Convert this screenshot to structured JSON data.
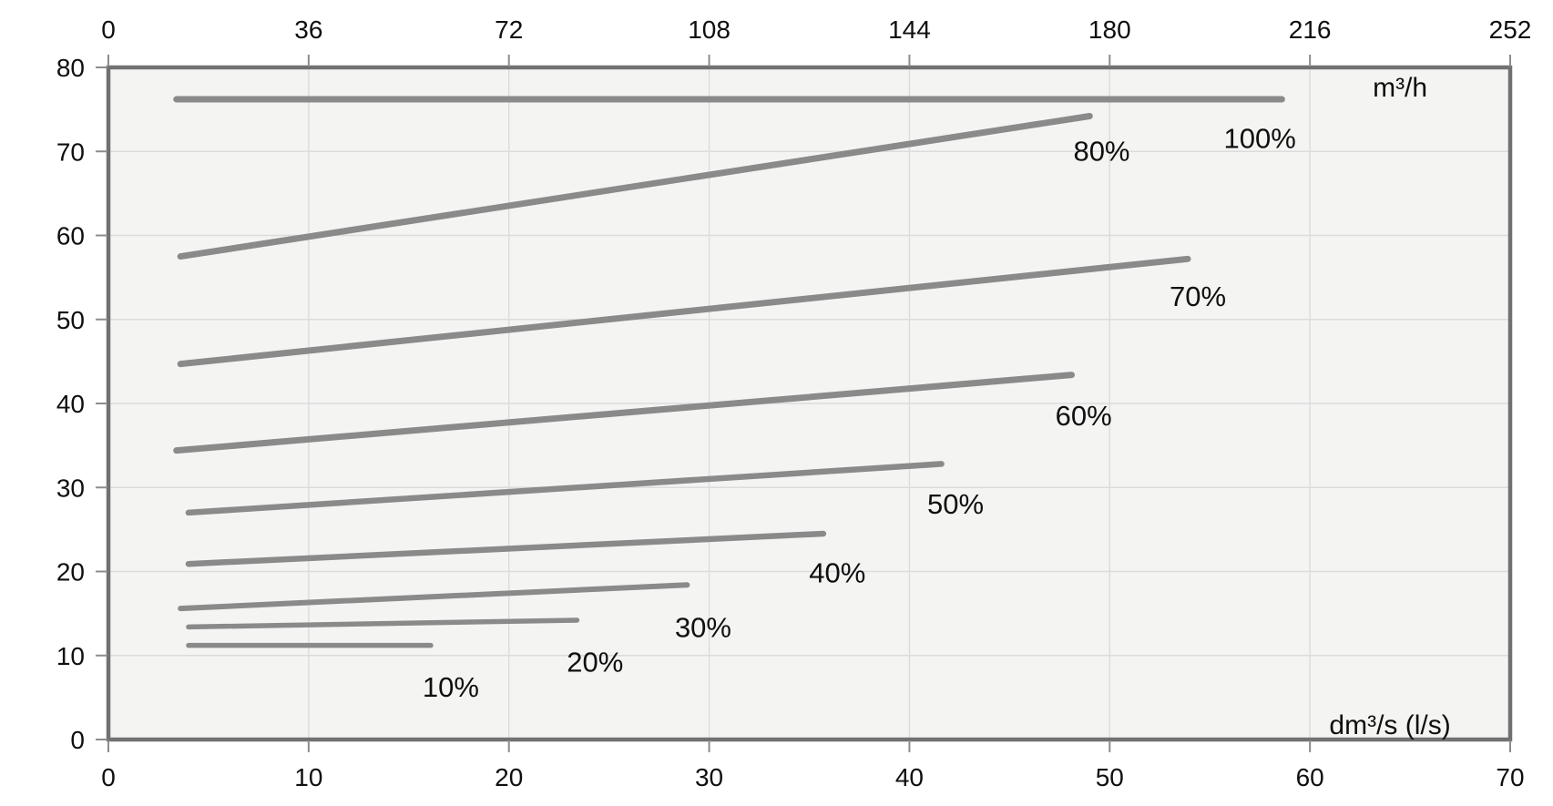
{
  "chart_data": {
    "type": "line",
    "title": "",
    "subtitle": "",
    "grid": true,
    "legend_position": "inline-labels",
    "axes": {
      "top": {
        "unit": "m³/h",
        "ticks": [
          0,
          36,
          72,
          108,
          144,
          180,
          216,
          252
        ],
        "range": [
          0,
          252
        ],
        "unit_at": [
          64.5,
          77.7
        ]
      },
      "bottom": {
        "unit": "dm³/s (l/s)",
        "ticks": [
          0,
          10,
          20,
          30,
          40,
          50,
          60,
          70
        ],
        "range": [
          0,
          70
        ],
        "unit_at": [
          64.0,
          1.8
        ]
      },
      "left": {
        "unit": "",
        "ticks": [
          0,
          10,
          20,
          30,
          40,
          50,
          60,
          70,
          80
        ],
        "range": [
          0,
          80
        ]
      }
    },
    "series": [
      {
        "name": "10%",
        "x": [
          4.0,
          16.1
        ],
        "y": [
          11.2,
          11.2
        ],
        "width": 5.5,
        "label_at": [
          17.1,
          6.3
        ]
      },
      {
        "name": "20%",
        "x": [
          4.0,
          23.4
        ],
        "y": [
          13.4,
          14.2
        ],
        "width": 5.5,
        "label_at": [
          24.3,
          9.3
        ]
      },
      {
        "name": "30%",
        "x": [
          3.6,
          28.9
        ],
        "y": [
          15.6,
          18.4
        ],
        "width": 6.0,
        "label_at": [
          29.7,
          13.4
        ]
      },
      {
        "name": "40%",
        "x": [
          4.0,
          35.7
        ],
        "y": [
          20.9,
          24.5
        ],
        "width": 6.5,
        "label_at": [
          36.4,
          19.9
        ]
      },
      {
        "name": "50%",
        "x": [
          4.0,
          41.6
        ],
        "y": [
          27.0,
          32.8
        ],
        "width": 6.5,
        "label_at": [
          42.3,
          28.1
        ]
      },
      {
        "name": "60%",
        "x": [
          3.4,
          48.1
        ],
        "y": [
          34.4,
          43.4
        ],
        "width": 7.0,
        "label_at": [
          48.7,
          38.6
        ]
      },
      {
        "name": "70%",
        "x": [
          3.6,
          53.9
        ],
        "y": [
          44.7,
          57.2
        ],
        "width": 7.0,
        "label_at": [
          54.4,
          52.8
        ]
      },
      {
        "name": "80%",
        "x": [
          3.6,
          49.0
        ],
        "y": [
          57.5,
          74.2
        ],
        "width": 7.0,
        "label_at": [
          49.6,
          70.1
        ]
      },
      {
        "name": "100%",
        "x": [
          3.4,
          58.6
        ],
        "y": [
          76.2,
          76.2
        ],
        "width": 7.0,
        "label_at": [
          57.5,
          71.6
        ]
      }
    ],
    "colors": {
      "curve": "#8a8a8a",
      "plot_background": "#f4f4f3",
      "page_background": "#ffffff",
      "gridline": "#dcdcdc",
      "border": "#717171",
      "tick": "#8c8c8c",
      "text": "#0f0f0f"
    }
  }
}
